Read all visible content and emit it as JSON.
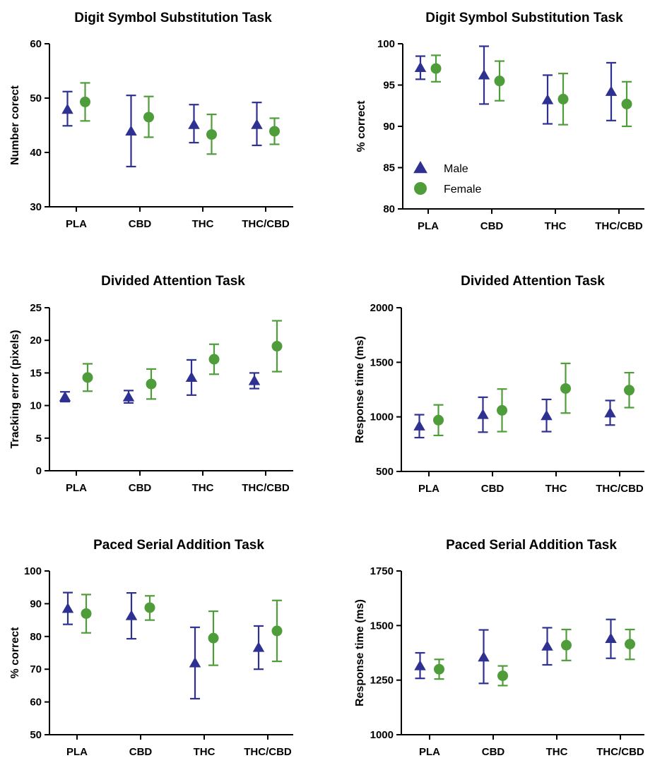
{
  "colors": {
    "male": "#2e3192",
    "female": "#4f9d3a",
    "axis": "#000000"
  },
  "chart_data": [
    {
      "type": "scatter",
      "title": "Digit Symbol Substitution Task",
      "xlabel": "",
      "ylabel": "Number corect",
      "ylim": [
        30,
        60
      ],
      "yticks": [
        "30",
        "40",
        "50",
        "60"
      ],
      "categories": [
        "PLA",
        "CBD",
        "THC",
        "THC/CBD"
      ],
      "series": [
        {
          "key": "male",
          "marker": "triangle",
          "values": [
            47.9,
            43.9,
            45.1,
            45.1
          ],
          "err_low": [
            44.9,
            37.4,
            41.8,
            41.3
          ],
          "err_high": [
            51.2,
            50.5,
            48.8,
            49.2
          ]
        },
        {
          "key": "female",
          "marker": "circle",
          "values": [
            49.3,
            46.5,
            43.3,
            43.9
          ],
          "err_low": [
            45.8,
            42.8,
            39.7,
            41.5
          ],
          "err_high": [
            52.8,
            50.3,
            47.0,
            46.3
          ]
        }
      ]
    },
    {
      "type": "scatter",
      "title": "Digit Symbol Substitution Task",
      "xlabel": "",
      "ylabel": "% correct",
      "ylim": [
        80,
        100
      ],
      "yticks": [
        "80",
        "85",
        "90",
        "95",
        "100"
      ],
      "categories": [
        "PLA",
        "CBD",
        "THC",
        "THC/CBD"
      ],
      "legend": {
        "position": "bottom-left",
        "entries": [
          "Male",
          "Female"
        ]
      },
      "series": [
        {
          "key": "male",
          "name": "Male",
          "marker": "triangle",
          "values": [
            97.1,
            96.2,
            93.2,
            94.2
          ],
          "err_low": [
            95.7,
            92.7,
            90.3,
            90.7
          ],
          "err_high": [
            98.5,
            99.7,
            96.2,
            97.7
          ]
        },
        {
          "key": "female",
          "name": "Female",
          "marker": "circle",
          "values": [
            97.0,
            95.5,
            93.3,
            92.7
          ],
          "err_low": [
            95.4,
            93.1,
            90.2,
            90.0
          ],
          "err_high": [
            98.6,
            97.9,
            96.4,
            95.4
          ]
        }
      ]
    },
    {
      "type": "scatter",
      "title": "Divided Attention Task",
      "xlabel": "",
      "ylabel": "Tracking error (pixels)",
      "ylim": [
        0,
        25
      ],
      "yticks": [
        "0",
        "5",
        "10",
        "15",
        "20",
        "25"
      ],
      "categories": [
        "PLA",
        "CBD",
        "THC",
        "THC/CBD"
      ],
      "series": [
        {
          "key": "male",
          "marker": "triangle",
          "values": [
            11.3,
            11.3,
            14.3,
            13.8
          ],
          "err_low": [
            10.6,
            10.4,
            11.6,
            12.6
          ],
          "err_high": [
            12.1,
            12.3,
            17.0,
            15.0
          ]
        },
        {
          "key": "female",
          "marker": "circle",
          "values": [
            14.3,
            13.3,
            17.1,
            19.1
          ],
          "err_low": [
            12.2,
            11.0,
            14.8,
            15.2
          ],
          "err_high": [
            16.4,
            15.6,
            19.4,
            23.0
          ]
        }
      ]
    },
    {
      "type": "scatter",
      "title": "Divided Attention Task",
      "xlabel": "",
      "ylabel": "Response time (ms)",
      "ylim": [
        500,
        2000
      ],
      "yticks": [
        "500",
        "1000",
        "1500",
        "2000"
      ],
      "categories": [
        "PLA",
        "CBD",
        "THC",
        "THC/CBD"
      ],
      "series": [
        {
          "key": "male",
          "marker": "triangle",
          "values": [
            915,
            1020,
            1010,
            1035
          ],
          "err_low": [
            810,
            860,
            865,
            925
          ],
          "err_high": [
            1020,
            1180,
            1160,
            1150
          ]
        },
        {
          "key": "female",
          "marker": "circle",
          "values": [
            970,
            1060,
            1260,
            1245
          ],
          "err_low": [
            830,
            865,
            1035,
            1085
          ],
          "err_high": [
            1110,
            1255,
            1490,
            1405
          ]
        }
      ]
    },
    {
      "type": "scatter",
      "title": "Paced Serial Addition Task",
      "xlabel": "",
      "ylabel": "% correct",
      "ylim": [
        50,
        100
      ],
      "yticks": [
        "50",
        "60",
        "70",
        "80",
        "90",
        "100"
      ],
      "categories": [
        "PLA",
        "CBD",
        "THC",
        "THC/CBD"
      ],
      "series": [
        {
          "key": "male",
          "marker": "triangle",
          "values": [
            88.5,
            86.3,
            71.9,
            76.6
          ],
          "err_low": [
            83.7,
            79.3,
            61.0,
            70.0
          ],
          "err_high": [
            93.4,
            93.3,
            82.8,
            83.2
          ]
        },
        {
          "key": "female",
          "marker": "circle",
          "values": [
            87.0,
            88.8,
            79.5,
            81.7
          ],
          "err_low": [
            81.1,
            85.0,
            71.2,
            72.4
          ],
          "err_high": [
            92.8,
            92.4,
            87.7,
            91.0
          ]
        }
      ]
    },
    {
      "type": "scatter",
      "title": "Paced Serial Addition Task",
      "xlabel": "",
      "ylabel": "Response time (ms)",
      "ylim": [
        1000,
        1750
      ],
      "yticks": [
        "1000",
        "1250",
        "1500",
        "1750"
      ],
      "categories": [
        "PLA",
        "CBD",
        "THC",
        "THC/CBD"
      ],
      "series": [
        {
          "key": "male",
          "marker": "triangle",
          "values": [
            1315,
            1355,
            1405,
            1440
          ],
          "err_low": [
            1258,
            1235,
            1320,
            1350
          ],
          "err_high": [
            1375,
            1480,
            1490,
            1528
          ]
        },
        {
          "key": "female",
          "marker": "circle",
          "values": [
            1300,
            1270,
            1410,
            1415
          ],
          "err_low": [
            1255,
            1225,
            1340,
            1345
          ],
          "err_high": [
            1345,
            1315,
            1482,
            1482
          ]
        }
      ]
    }
  ]
}
